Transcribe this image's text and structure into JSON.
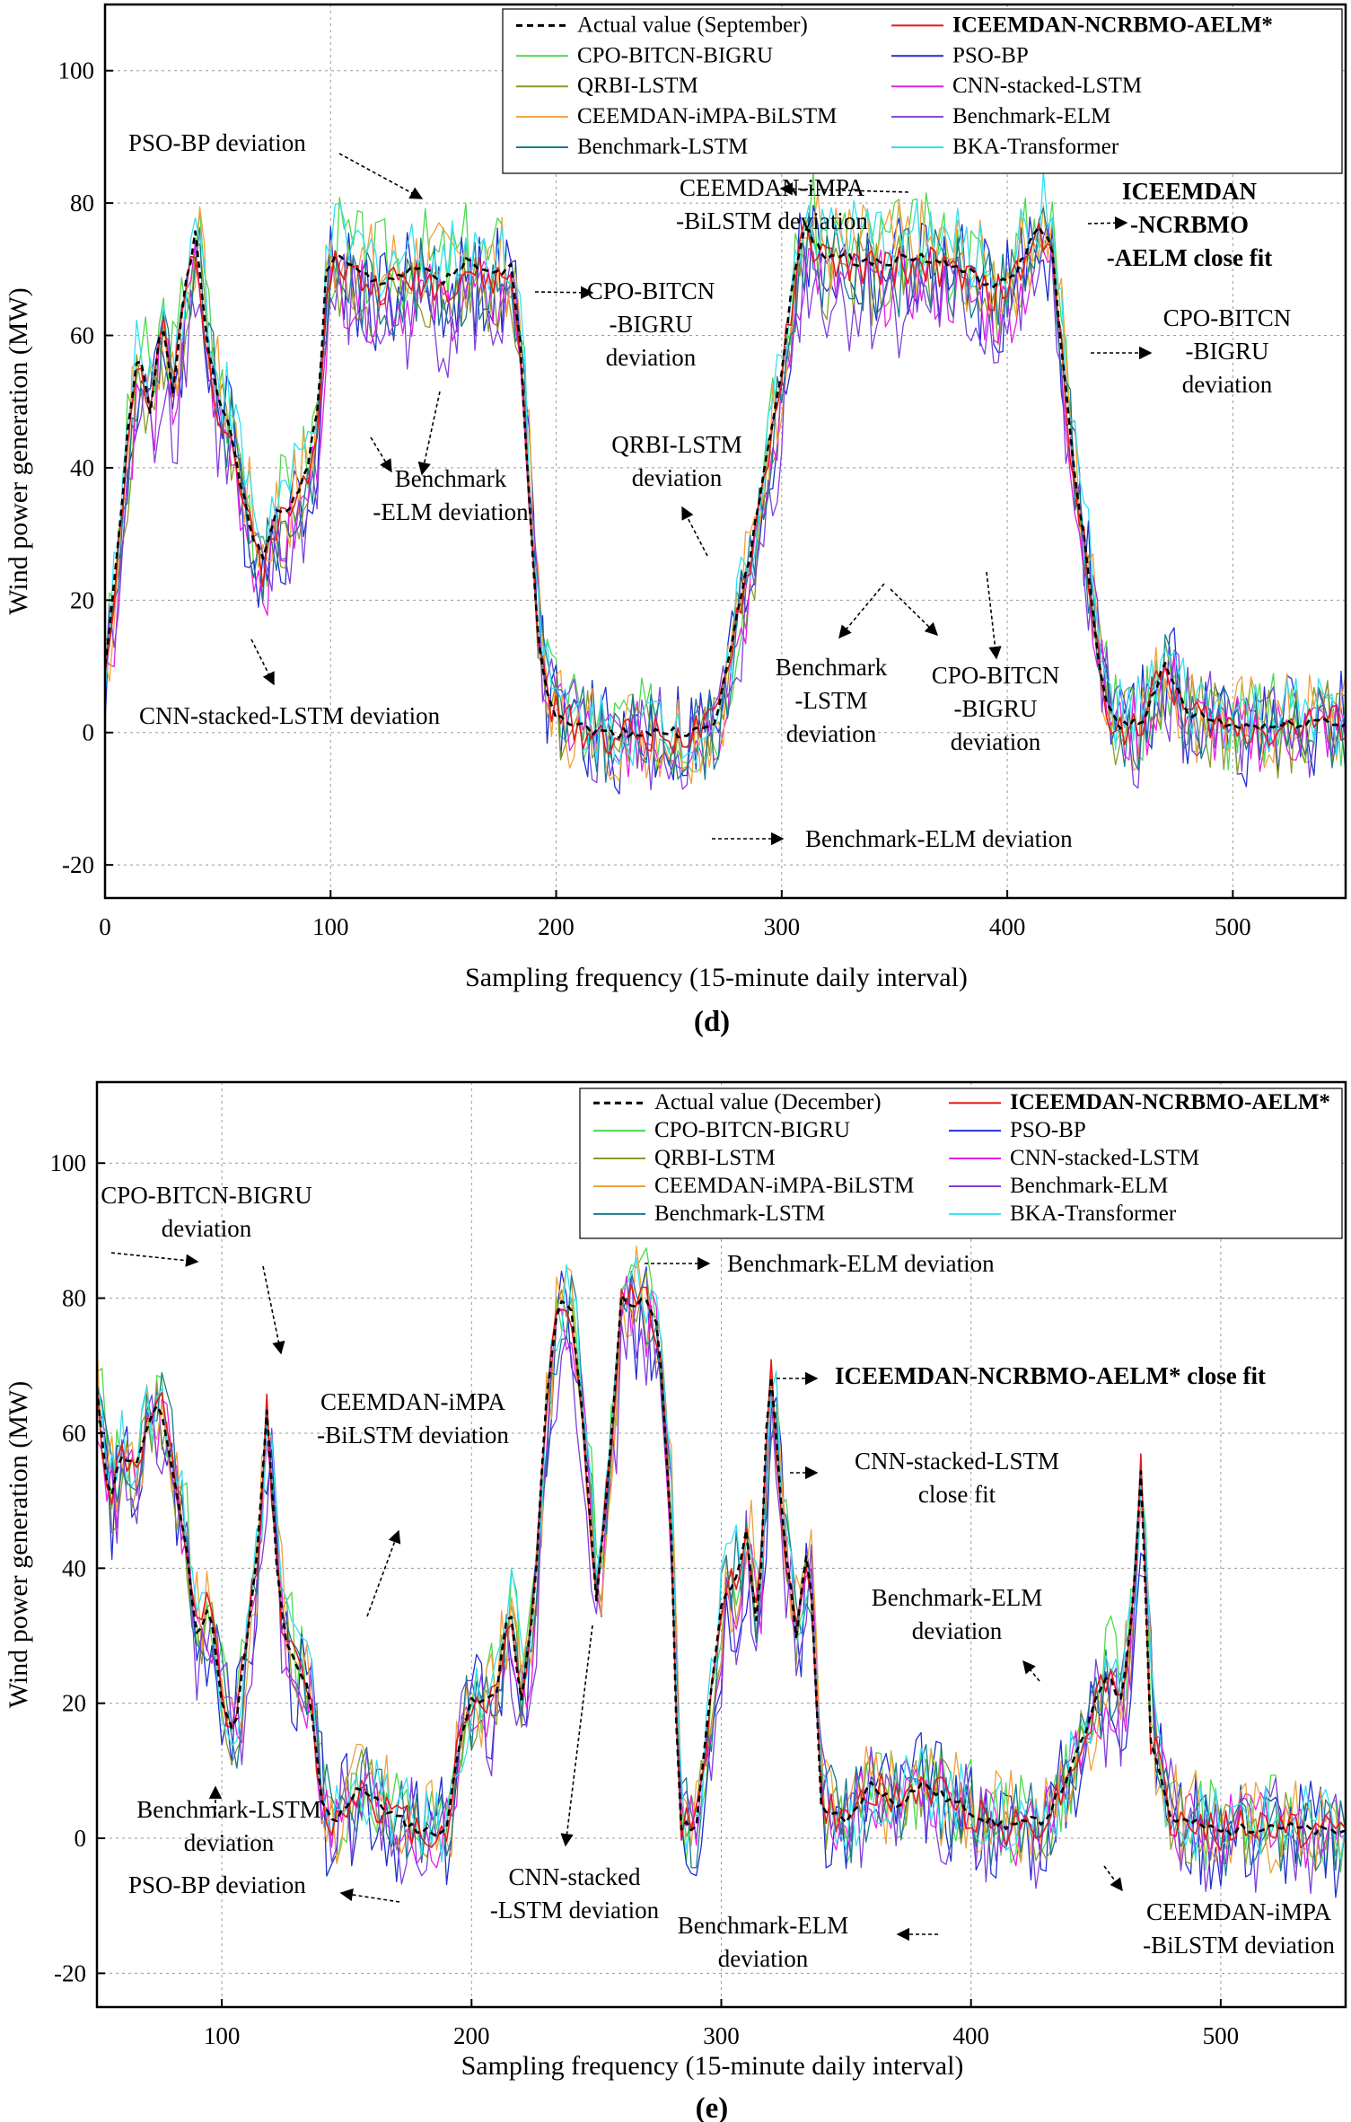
{
  "chart_data": [
    {
      "panel": "(d)",
      "type": "line",
      "xlabel": "Sampling frequency (15-minute daily interval)",
      "ylabel": "Wind power generation (MW)",
      "xlim": [
        0,
        550
      ],
      "ylim": [
        -25,
        110
      ],
      "xticks": [
        0,
        100,
        200,
        300,
        400,
        500
      ],
      "yticks": [
        -20,
        0,
        20,
        40,
        60,
        80,
        100
      ],
      "grid": true,
      "legend_position": "top-right",
      "actual_key": [
        [
          0,
          10
        ],
        [
          5,
          25
        ],
        [
          10,
          45
        ],
        [
          15,
          58
        ],
        [
          20,
          48
        ],
        [
          25,
          63
        ],
        [
          30,
          52
        ],
        [
          35,
          66
        ],
        [
          40,
          75
        ],
        [
          45,
          60
        ],
        [
          50,
          50
        ],
        [
          55,
          47
        ],
        [
          60,
          38
        ],
        [
          65,
          30
        ],
        [
          70,
          26
        ],
        [
          75,
          33
        ],
        [
          80,
          33
        ],
        [
          85,
          36
        ],
        [
          90,
          41
        ],
        [
          95,
          50
        ],
        [
          98,
          70
        ],
        [
          102,
          72
        ],
        [
          110,
          70
        ],
        [
          120,
          68
        ],
        [
          130,
          69
        ],
        [
          140,
          70
        ],
        [
          150,
          68
        ],
        [
          160,
          71
        ],
        [
          170,
          69
        ],
        [
          180,
          70
        ],
        [
          184,
          60
        ],
        [
          188,
          35
        ],
        [
          192,
          15
        ],
        [
          196,
          6
        ],
        [
          200,
          3
        ],
        [
          210,
          1
        ],
        [
          220,
          0
        ],
        [
          240,
          0
        ],
        [
          260,
          0
        ],
        [
          270,
          1
        ],
        [
          275,
          8
        ],
        [
          280,
          18
        ],
        [
          285,
          25
        ],
        [
          290,
          35
        ],
        [
          295,
          45
        ],
        [
          300,
          55
        ],
        [
          305,
          68
        ],
        [
          310,
          76
        ],
        [
          320,
          72
        ],
        [
          340,
          71
        ],
        [
          360,
          72
        ],
        [
          380,
          70
        ],
        [
          395,
          67
        ],
        [
          405,
          70
        ],
        [
          410,
          74
        ],
        [
          415,
          77
        ],
        [
          420,
          72
        ],
        [
          425,
          55
        ],
        [
          430,
          38
        ],
        [
          435,
          27
        ],
        [
          440,
          12
        ],
        [
          445,
          3
        ],
        [
          450,
          1
        ],
        [
          460,
          2
        ],
        [
          470,
          10
        ],
        [
          480,
          3
        ],
        [
          490,
          2
        ],
        [
          500,
          1
        ],
        [
          520,
          1
        ],
        [
          540,
          2
        ],
        [
          550,
          1
        ]
      ],
      "series": [
        {
          "name": "Actual value (September)",
          "color": "#000000",
          "dash": "7,5",
          "width": 2.6,
          "offset": 0,
          "noise": 0.8,
          "seed": 1
        },
        {
          "name": "ICEEMDAN-NCRBMO-AELM*",
          "bold": true,
          "color": "#e41a1c",
          "dash": "",
          "width": 1.6,
          "offset": -1,
          "noise": 3,
          "seed": 2
        },
        {
          "name": "CPO-BITCN-BIGRU",
          "color": "#4dd94d",
          "dash": "",
          "width": 1.3,
          "offset": 2,
          "noise": 8,
          "seed": 3
        },
        {
          "name": "PSO-BP",
          "color": "#1f2fd0",
          "dash": "",
          "width": 1.3,
          "offset": -2,
          "noise": 9,
          "seed": 4
        },
        {
          "name": "QRBI-LSTM",
          "color": "#8a9a2c",
          "dash": "",
          "width": 1.3,
          "offset": -3,
          "noise": 7,
          "seed": 5
        },
        {
          "name": "CNN-stacked-LSTM",
          "color": "#e61ee6",
          "dash": "",
          "width": 1.3,
          "offset": -4,
          "noise": 6,
          "seed": 6
        },
        {
          "name": "CEEMDAN-iMPA-BiLSTM",
          "color": "#f2a03c",
          "dash": "",
          "width": 1.3,
          "offset": 1,
          "noise": 8,
          "seed": 7
        },
        {
          "name": "Benchmark-ELM",
          "color": "#8040d8",
          "dash": "",
          "width": 1.3,
          "offset": -6,
          "noise": 9,
          "seed": 8
        },
        {
          "name": "Benchmark-LSTM",
          "color": "#1a7a8c",
          "dash": "",
          "width": 1.3,
          "offset": -2,
          "noise": 7,
          "seed": 9
        },
        {
          "name": "BKA-Transformer",
          "color": "#33e0f2",
          "dash": "",
          "width": 1.3,
          "offset": 3,
          "noise": 6,
          "seed": 10
        }
      ],
      "annotations": [
        {
          "lines": [
            "PSO-BP deviation"
          ],
          "bold": false
        },
        {
          "lines": [
            "CEEMDAN-iMPA",
            "-BiLSTM deviation"
          ],
          "bold": false
        },
        {
          "lines": [
            "ICEEMDAN",
            "-NCRBMO",
            "-AELM close fit"
          ],
          "bold": true
        },
        {
          "lines": [
            "CPO-BITCN",
            "-BIGRU",
            "deviation"
          ],
          "bold": false
        },
        {
          "lines": [
            "CPO-BITCN",
            "-BIGRU",
            "deviation"
          ],
          "bold": false
        },
        {
          "lines": [
            "QRBI-LSTM",
            "deviation"
          ],
          "bold": false
        },
        {
          "lines": [
            "Benchmark",
            "-ELM deviation"
          ],
          "bold": false
        },
        {
          "lines": [
            "CNN-stacked-LSTM deviation"
          ],
          "bold": false
        },
        {
          "lines": [
            "Benchmark",
            "-LSTM",
            "deviation"
          ],
          "bold": false
        },
        {
          "lines": [
            "CPO-BITCN",
            "-BIGRU",
            "deviation"
          ],
          "bold": false
        },
        {
          "lines": [
            "Benchmark-ELM deviation"
          ],
          "bold": false
        }
      ]
    },
    {
      "panel": "(e)",
      "type": "line",
      "xlabel": "Sampling frequency (15-minute daily interval)",
      "ylabel": "Wind power generation (MW)",
      "xlim": [
        50,
        550
      ],
      "ylim": [
        -25,
        112
      ],
      "xticks": [
        100,
        200,
        300,
        400,
        500
      ],
      "yticks": [
        -20,
        0,
        20,
        40,
        60,
        80,
        100
      ],
      "grid": true,
      "legend_position": "top-right",
      "actual_key": [
        [
          50,
          66
        ],
        [
          55,
          50
        ],
        [
          60,
          57
        ],
        [
          65,
          55
        ],
        [
          70,
          60
        ],
        [
          75,
          65
        ],
        [
          80,
          55
        ],
        [
          85,
          45
        ],
        [
          90,
          30
        ],
        [
          95,
          35
        ],
        [
          100,
          20
        ],
        [
          105,
          15
        ],
        [
          110,
          30
        ],
        [
          115,
          45
        ],
        [
          118,
          64
        ],
        [
          122,
          40
        ],
        [
          125,
          30
        ],
        [
          130,
          25
        ],
        [
          135,
          22
        ],
        [
          140,
          5
        ],
        [
          145,
          2
        ],
        [
          150,
          5
        ],
        [
          155,
          8
        ],
        [
          160,
          6
        ],
        [
          170,
          3
        ],
        [
          180,
          1
        ],
        [
          190,
          1
        ],
        [
          195,
          15
        ],
        [
          200,
          20
        ],
        [
          205,
          20
        ],
        [
          210,
          22
        ],
        [
          215,
          35
        ],
        [
          220,
          20
        ],
        [
          225,
          35
        ],
        [
          230,
          65
        ],
        [
          235,
          80
        ],
        [
          240,
          78
        ],
        [
          245,
          60
        ],
        [
          250,
          35
        ],
        [
          255,
          55
        ],
        [
          260,
          80
        ],
        [
          270,
          79
        ],
        [
          275,
          75
        ],
        [
          280,
          45
        ],
        [
          283,
          2
        ],
        [
          290,
          2
        ],
        [
          300,
          35
        ],
        [
          305,
          38
        ],
        [
          310,
          45
        ],
        [
          315,
          30
        ],
        [
          318,
          60
        ],
        [
          320,
          68
        ],
        [
          325,
          45
        ],
        [
          330,
          30
        ],
        [
          335,
          45
        ],
        [
          340,
          5
        ],
        [
          350,
          2
        ],
        [
          360,
          8
        ],
        [
          370,
          5
        ],
        [
          380,
          8
        ],
        [
          390,
          6
        ],
        [
          400,
          4
        ],
        [
          410,
          2
        ],
        [
          420,
          2
        ],
        [
          430,
          3
        ],
        [
          440,
          10
        ],
        [
          450,
          20
        ],
        [
          455,
          25
        ],
        [
          460,
          20
        ],
        [
          465,
          35
        ],
        [
          468,
          55
        ],
        [
          472,
          15
        ],
        [
          480,
          3
        ],
        [
          490,
          2
        ],
        [
          500,
          1
        ],
        [
          520,
          2
        ],
        [
          540,
          1
        ],
        [
          550,
          1
        ]
      ],
      "series": [
        {
          "name": "Actual value (December)",
          "color": "#000000",
          "dash": "7,5",
          "width": 2.6,
          "offset": 0,
          "noise": 0.8,
          "seed": 11
        },
        {
          "name": "ICEEMDAN-NCRBMO-AELM*",
          "bold": true,
          "color": "#e41a1c",
          "dash": "",
          "width": 1.6,
          "offset": 0,
          "noise": 3,
          "seed": 12
        },
        {
          "name": "CPO-BITCN-BIGRU",
          "color": "#4dd94d",
          "dash": "",
          "width": 1.3,
          "offset": 2,
          "noise": 7,
          "seed": 13
        },
        {
          "name": "PSO-BP",
          "color": "#1f2fd0",
          "dash": "",
          "width": 1.3,
          "offset": -3,
          "noise": 9,
          "seed": 14
        },
        {
          "name": "QRBI-LSTM",
          "color": "#8a9a2c",
          "dash": "",
          "width": 1.3,
          "offset": -1,
          "noise": 6,
          "seed": 15
        },
        {
          "name": "CNN-stacked-LSTM",
          "color": "#e61ee6",
          "dash": "",
          "width": 1.3,
          "offset": -2,
          "noise": 6,
          "seed": 16
        },
        {
          "name": "CEEMDAN-iMPA-BiLSTM",
          "color": "#f2a03c",
          "dash": "",
          "width": 1.3,
          "offset": 1,
          "noise": 8,
          "seed": 17
        },
        {
          "name": "Benchmark-ELM",
          "color": "#8040d8",
          "dash": "",
          "width": 1.3,
          "offset": -4,
          "noise": 9,
          "seed": 18
        },
        {
          "name": "Benchmark-LSTM",
          "color": "#1a7a8c",
          "dash": "",
          "width": 1.3,
          "offset": 0,
          "noise": 7,
          "seed": 19
        },
        {
          "name": "BKA-Transformer",
          "color": "#33e0f2",
          "dash": "",
          "width": 1.3,
          "offset": 2,
          "noise": 6,
          "seed": 20
        }
      ],
      "annotations": [
        {
          "lines": [
            "CPO-BITCN-BIGRU",
            "deviation"
          ],
          "bold": false
        },
        {
          "lines": [
            "Benchmark-ELM deviation"
          ],
          "bold": false
        },
        {
          "lines": [
            "ICEEMDAN-NCRBMO-AELM* close fit"
          ],
          "bold": true
        },
        {
          "lines": [
            "CEEMDAN-iMPA",
            "-BiLSTM deviation"
          ],
          "bold": false
        },
        {
          "lines": [
            "CNN-stacked-LSTM",
            "close fit"
          ],
          "bold": false
        },
        {
          "lines": [
            "Benchmark-ELM",
            "deviation"
          ],
          "bold": false
        },
        {
          "lines": [
            "Benchmark-LSTM",
            "deviation"
          ],
          "bold": false
        },
        {
          "lines": [
            "PSO-BP deviation"
          ],
          "bold": false
        },
        {
          "lines": [
            "CNN-stacked",
            "-LSTM deviation"
          ],
          "bold": false
        },
        {
          "lines": [
            "Benchmark-ELM",
            "deviation"
          ],
          "bold": false
        },
        {
          "lines": [
            "CEEMDAN-iMPA",
            "-BiLSTM deviation"
          ],
          "bold": false
        }
      ]
    }
  ]
}
